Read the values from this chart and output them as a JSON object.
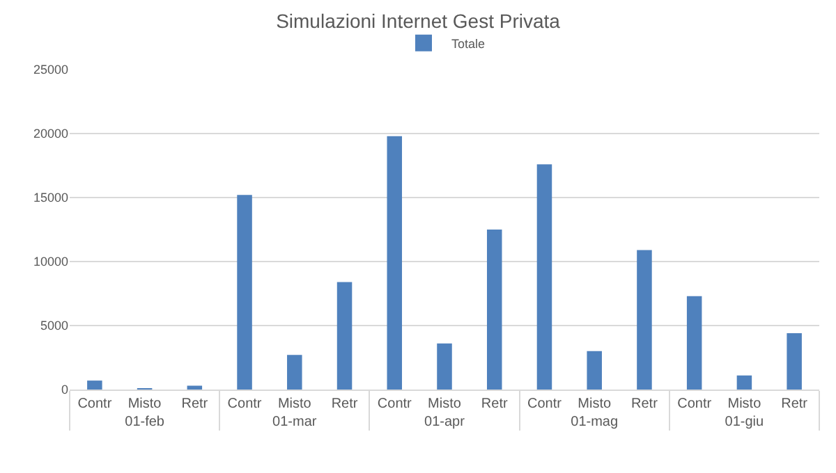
{
  "chart_data": {
    "type": "bar",
    "title": "Simulazioni Internet Gest Privata",
    "categories": [
      "Contr",
      "Misto",
      "Retr",
      "Contr",
      "Misto",
      "Retr",
      "Contr",
      "Misto",
      "Retr",
      "Contr",
      "Misto",
      "Retr",
      "Contr",
      "Misto",
      "Retr"
    ],
    "annotations": [
      "01-feb",
      "01-mar",
      "01-apr",
      "01-mag",
      "01-giu"
    ],
    "series": [
      {
        "name": "Totale",
        "color": "#4f81bd",
        "values": [
          700,
          100,
          300,
          15200,
          2700,
          8400,
          19800,
          3600,
          12500,
          17600,
          3000,
          10900,
          7300,
          1100,
          4400
        ]
      }
    ],
    "ylim": [
      0,
      25000
    ],
    "yticks": [
      0,
      5000,
      10000,
      15000,
      20000,
      25000
    ],
    "grid": "y",
    "legend": "top"
  }
}
